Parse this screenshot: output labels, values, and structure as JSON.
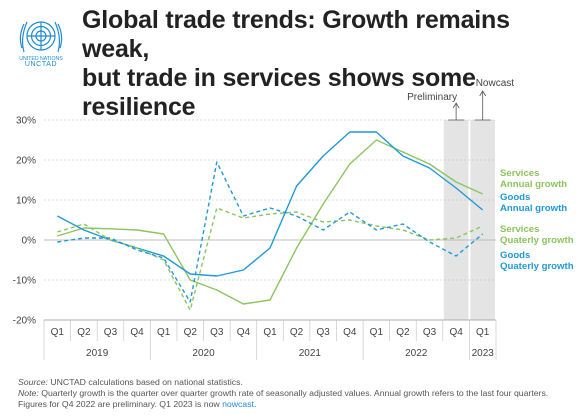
{
  "header": {
    "org_line1": "UNITED NATIONS",
    "org_line2": "UNCTAD",
    "title_line1": "Global trade trends: Growth remains weak,",
    "title_line2": "but trade in services shows some resilience"
  },
  "colors": {
    "services": "#8cc560",
    "goods": "#1f9ad6",
    "logo": "#1e8bd6",
    "shade": "#e4e4e4"
  },
  "footer": {
    "source_label": "Source:",
    "source_text": "UNCTAD calculations based on national statistics.",
    "note_label": "Note:",
    "note_text": "Quarterly growth is the quarter over quarter growth rate of seasonally adjusted values. Annual growth refers to the last four quarters. Figures for Q4 2022 are preliminary. Q1 2023 is now ",
    "note_link": "nowcast",
    "note_end": "."
  },
  "chart_data": {
    "type": "line",
    "categories": [
      "Q1",
      "Q2",
      "Q3",
      "Q4",
      "Q1",
      "Q2",
      "Q3",
      "Q4",
      "Q1",
      "Q2",
      "Q3",
      "Q4",
      "Q1",
      "Q2",
      "Q3",
      "Q4",
      "Q1"
    ],
    "year_labels": [
      "2019",
      "2020",
      "2021",
      "2022",
      "2023"
    ],
    "y_ticks": [
      "30%",
      "20%",
      "10%",
      "0%",
      "-10%",
      "-20%"
    ],
    "ylim": [
      -20,
      30
    ],
    "grid": true,
    "annotations": [
      "Preliminary",
      "Nowcast"
    ],
    "series": [
      {
        "name": "Services Annual growth",
        "style": "solid",
        "color": "#8cc560",
        "values": [
          1,
          3,
          2.8,
          2.5,
          1.5,
          -10,
          -12.5,
          -16,
          -15,
          -2,
          9,
          19,
          25,
          22,
          19,
          14.5,
          11.5
        ]
      },
      {
        "name": "Goods Annual growth",
        "style": "solid",
        "color": "#1f9ad6",
        "values": [
          6,
          2.5,
          0,
          -2,
          -4,
          -8.5,
          -9,
          -7.5,
          -2,
          13.5,
          21,
          27,
          27,
          21,
          18,
          13,
          7.5
        ]
      },
      {
        "name": "Services Quaterly growth",
        "style": "dashed",
        "color": "#8cc560",
        "values": [
          2,
          4,
          0,
          -2,
          -5,
          -17.5,
          8,
          5.5,
          6.5,
          7,
          4.5,
          5,
          3.5,
          2.5,
          0,
          0.5,
          3.5
        ]
      },
      {
        "name": "Goods Quaterly growth",
        "style": "dashed",
        "color": "#1f9ad6",
        "values": [
          -0.5,
          0.5,
          0.5,
          -2.5,
          -4.5,
          -15.5,
          19.5,
          6,
          8,
          6,
          2.5,
          7,
          2.5,
          4,
          -0.5,
          -4,
          1.5
        ]
      }
    ],
    "legend": [
      {
        "line1": "Services",
        "line2": "Annual growth",
        "color": "#8cc560"
      },
      {
        "line1": "Goods",
        "line2": "Annual growth",
        "color": "#1f9ad6"
      },
      {
        "line1": "Services",
        "line2": "Quaterly growth",
        "color": "#8cc560"
      },
      {
        "line1": "Goods",
        "line2": "Quaterly growth",
        "color": "#1f9ad6"
      }
    ]
  }
}
